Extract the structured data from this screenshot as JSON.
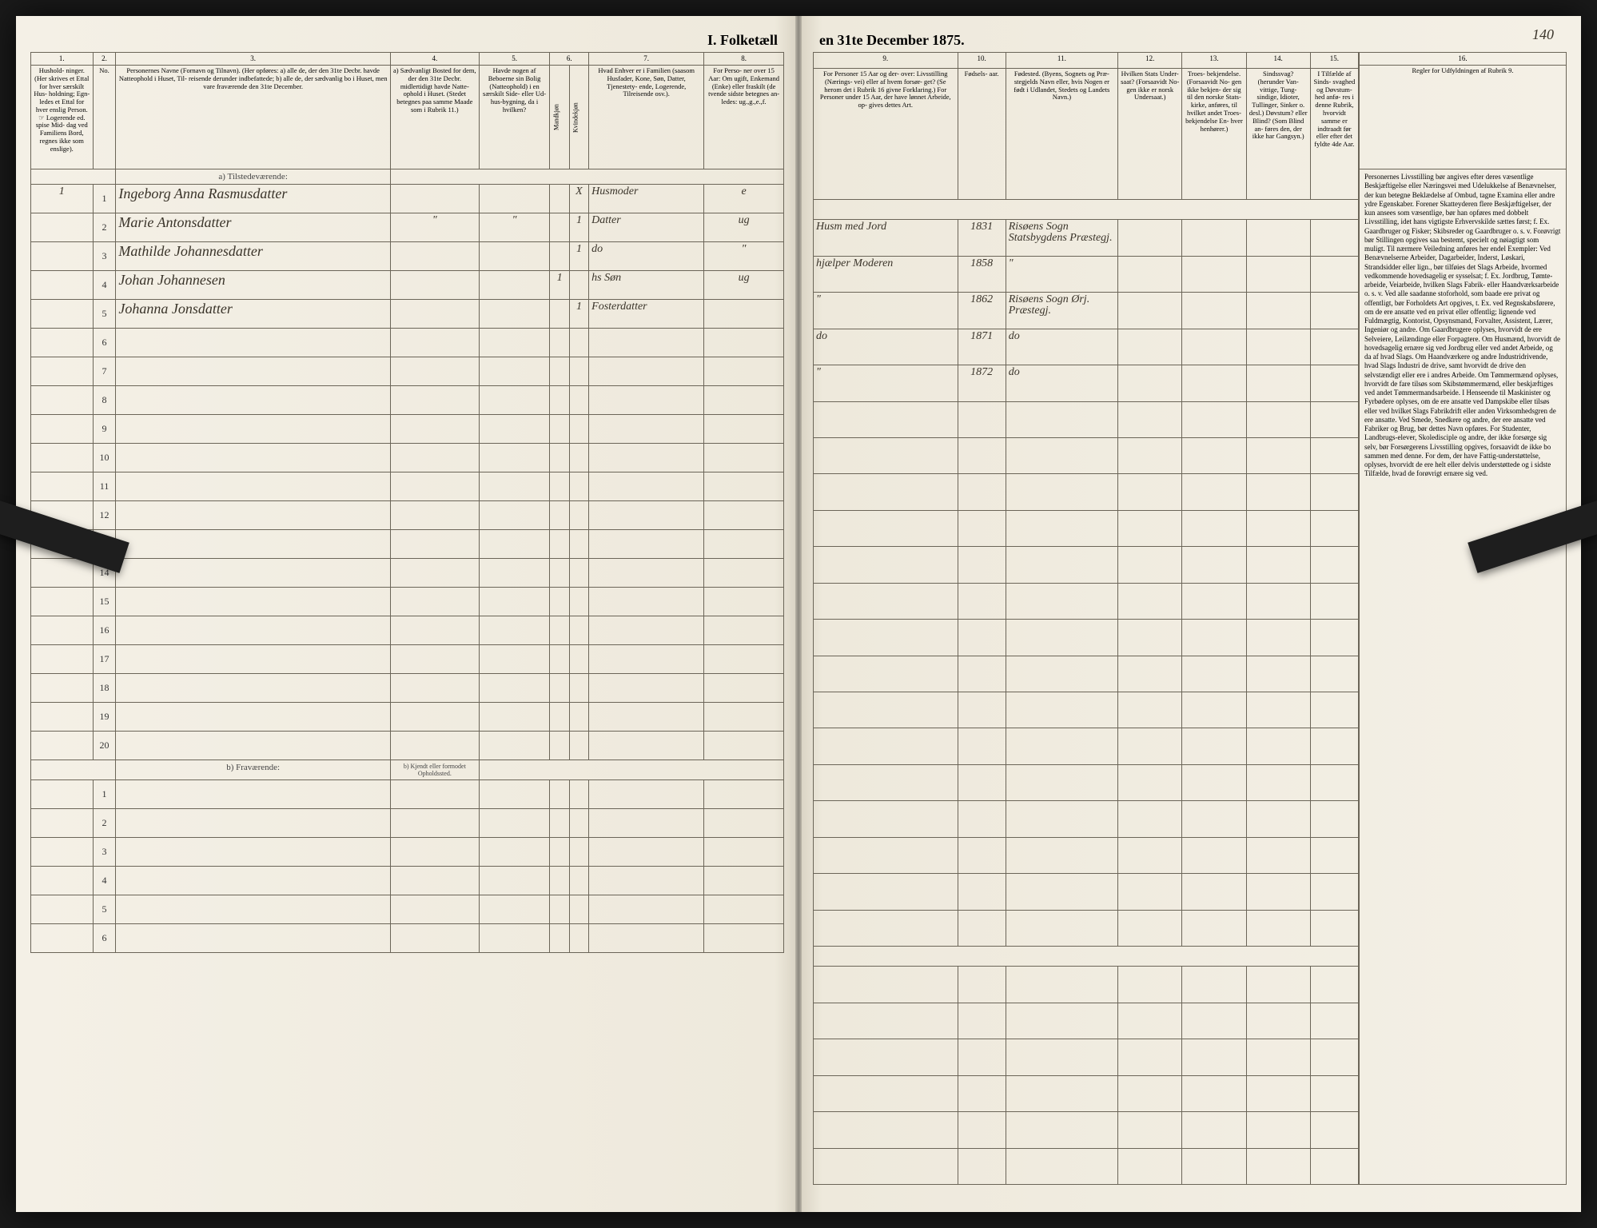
{
  "title_left": "I. Folketæll",
  "title_right": "en 31te December 1875.",
  "page_number": "140",
  "left_cols": {
    "nums": [
      "1.",
      "2.",
      "3.",
      "4.",
      "5.",
      "6.",
      "7.",
      "8."
    ],
    "h1": "Hushold-\nninger.\n(Her skrives et\nEttal for hver\nsærskilt Hus-\nholdning; Egn-\nledes et Ettal for\nhver enslig\nPerson.\n☞ Logerende\ned. spise Mid-\ndag ved Familiens\nBord, regnes ikke\nsom enslige).",
    "h2": "No.",
    "h3": "Personernes Navne (Fornavn og Tilnavn).\n(Her opføres:\na) alle de, der den 31te Decbr. havde Natteophold i Huset, Til-\nreisende derunder indbefattede;\nb) alle de, der sædvanlig bo i Huset, men vare fraværende\nden 31te December.",
    "h4": "a) Sædvanligt\nBosted for\ndem, der den\n31te Decbr.\nmidlertidigt\nhavde Natte-\nophold i Huset.\n(Stedet betegnes\npaa samme Maade\nsom i Rubrik 11.)",
    "h5": "Havde nogen\naf Beboerne\nsin Bolig\n(Natteophold)\ni en særskilt\nSide- eller Ud-\nhus-bygning,\nda i\nhvilken?",
    "h6": "Kjøn.\n(Her sæt-\ntes et Be-\nkom-\nmende\nRubrik.)",
    "h6a": "Mandkjøn",
    "h6b": "Kvindekjøn",
    "h7": "Hvad Enhver er\ni Familien\n(saasom Husfader,\nKone, Søn, Datter,\nTjenestety-\nende, Logerende,\nTilreisende osv.).",
    "h8": "For Perso-\nner over 15 Aar:\nOm ugift,\nEnkemand\n(Enke) eller\nfraskilt (de\ntvende sidste\nbetegnes an-\nledes:\nug.,g.,e.,f."
  },
  "right_cols": {
    "nums": [
      "9.",
      "10.",
      "11.",
      "12.",
      "13.",
      "14.",
      "15.",
      "16."
    ],
    "h9": "For Personer 15 Aar og der-\nover: Livsstilling (Nærings-\nvei) eller af hvem forsør-\nget? (Se herom det i Rubrik 16\ngivne Forklaring.)\nFor Personer under 15 Aar,\nder have lønnet Arbeide, op-\ngives dettes Art.",
    "h10": "Fødsels-\naar.",
    "h11": "Fødested.\n(Byens, Sognets og Præ-\nstegjelds Navn eller, hvis\nNogen er født i Udlandet,\nStedets og Landets\nNavn.)",
    "h12": "Hvilken\nStats Under-\nsaat?\n(Forsaavidt No-\ngen ikke er\nnorsk\nUndersaat.)",
    "h13": "Troes-\nbekjendelse.\n(Forsaavidt No-\ngen ikke bekjen-\nder sig til den\nnorske Stats-\nkirke, anføres,\ntil hvilket\nandet Troes-\nbekjendelse En-\nhver henhører.)",
    "h14": "Sindssvag?\n(herunder Van-\nvittige, Tung-\nsindige, Idioter,\nTullinger,\nSinker o. desl.)\nDøvstum?\neller Blind?\n(Som Blind an-\nføres den, der\nikke har\nGangsyn.)",
    "h15": "I Tilfælde\naf Sinds-\nsvaghed og\nDøvstum-\nhed anfø-\nres i denne\nRubrik,\nhvorvidt\nsamme er\nindtraadt\nfør eller\nefter det\n fyldte\n4de Aar.",
    "h16": "Regler for Udfyldningen\naf\nRubrik 9."
  },
  "section_a": "a) Tilstedeværende:",
  "section_b": "b) Fraværende:",
  "section_b_note": "b) Kjendt eller\nformodet\nOpholdssted.",
  "rows": [
    {
      "n": "1",
      "hus": "1",
      "name": "Ingeborg Anna Rasmusdatter",
      "c4": "",
      "c5": "",
      "m": "",
      "k": "X",
      "c7": "Husmoder",
      "c8": "e",
      "c9": "Husm med Jord",
      "c10": "1831",
      "c11": "Risøens Sogn\nStatsbygdens Præstegj."
    },
    {
      "n": "2",
      "hus": "",
      "name": "Marie Antonsdatter",
      "c4": "\"",
      "c5": "\"",
      "m": "",
      "k": "1",
      "c7": "Datter",
      "c8": "ug",
      "c9": "hjælper Moderen",
      "c10": "1858",
      "c11": "\""
    },
    {
      "n": "3",
      "hus": "",
      "name": "Mathilde Johannesdatter",
      "c4": "",
      "c5": "",
      "m": "",
      "k": "1",
      "c7": "do",
      "c8": "\"",
      "c9": "\"",
      "c10": "1862",
      "c11": "Risøens Sogn\nØrj. Præstegj."
    },
    {
      "n": "4",
      "hus": "",
      "name": "Johan Johannesen",
      "c4": "",
      "c5": "",
      "m": "1",
      "k": "",
      "c7": "hs Søn",
      "c8": "ug",
      "c9": "do",
      "c10": "1871",
      "c11": "do"
    },
    {
      "n": "5",
      "hus": "",
      "name": "Johanna Jonsdatter",
      "c4": "",
      "c5": "",
      "m": "",
      "k": "1",
      "c7": "Fosterdatter",
      "c8": "",
      "c9": "\"",
      "c10": "1872",
      "c11": "do"
    }
  ],
  "empty_a": [
    "6",
    "7",
    "8",
    "9",
    "10",
    "11",
    "12",
    "13",
    "14",
    "15",
    "16",
    "17",
    "18",
    "19",
    "20"
  ],
  "empty_b": [
    "1",
    "2",
    "3",
    "4",
    "5",
    "6"
  ],
  "instructions_text": "Personernes Livsstilling bør angives efter deres væsentlige Beskjæftigelse eller Næringsvei med Udelukkelse af Benævnelser, der kun betegne Beklædelse af Ombud, tagne Examina eller andre ydre Egenskaber. Forener Skatteyderen flere Beskjæftigelser, der kun ansees som væsentlige, bør han opføres med dobbelt Livsstilling, idet hans vigtigste Erhvervskilde sættes først; f. Ex. Gaardbruger og Fisker; Skibsreder og Gaardbruger o. s. v. Forøvrigt bør Stillingen opgives saa bestemt, specielt og nøiagtigt som muligt.\n\nTil nærmere Veiledning anføres her endel Exempler:\n\nVed Benævnelserne Arbeider, Dagarbeider, Inderst, Løskari, Strandsidder eller lign., bør tilføies det Slags Arbeide, hvormed vedkommende hovedsagelig er sysselsat; f. Ex. Jordbrug, Tømte-arbeide, Veiarbeide, hvilken Slags Fabrik- eller Haandværksarbeide o. s. v.\n\nVed alle saadanne stoforhold, som baade ere privat og offentligt, bør Forholdets Art opgives, t. Ex. ved Regnskabsførere, om de ere ansatte ved en privat eller offentlig; lignende ved Fuldmægtig, Kontorist, Opsynsmand, Forvalter, Assistent, Lærer, Ingeniør og andre.\n\nOm Gaardbrugere oplyses, hvorvidt de ere Selveiere, Leilændinge eller Forpagtere.\n\nOm Husmænd, hvorvidt de hovedsagelig ernære sig ved Jordbrug eller ved andet Arbeide, og da af hvad Slags.\n\nOm Haandværkere og andre Industridrivende, hvad Slags Industri de drive, samt hvorvidt de drive den selvstændigt eller ere i andres Arbeide.\n\nOm Tømmermænd oplyses, hvorvidt de fare tilsøs som Skibstømmermænd, eller beskjæftiges ved andet Tømmermandsarbeide.\n\nI Henseende til Maskinister og Fyrbødere oplyses, om de ere ansatte ved Dampskibe eller tilsøs eller ved hvilket Slags Fabrikdrift eller anden Virksomhedsgren de ere ansatte.\n\nVed Smede, Snedkere og andre, der ere ansatte ved Fabriker og Brug, bør dettes Navn opføres.\n\nFor Studenter, Landbrugs-elever, Skoledisciple og andre, der ikke forsørge sig selv, bør Forsørgerens Livsstilling opgives, forsaavidt de ikke bo sammen med denne.\n\nFor dem, der have Fattig-understøttelse, oplyses, hvorvidt de ere helt eller delvis understøttede og i sidste Tilfælde, hvad de forøvrigt ernære sig ved."
}
